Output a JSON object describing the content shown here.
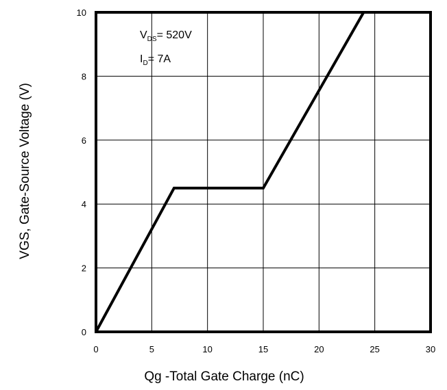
{
  "chart_data": {
    "type": "line",
    "title": "",
    "xlabel": "Qg -Total Gate Charge (nC)",
    "ylabel": "VGS, Gate-Source Voltage (V)",
    "xlim": [
      0,
      30
    ],
    "ylim": [
      0,
      10
    ],
    "x_ticks": [
      "0",
      "5",
      "10",
      "15",
      "20",
      "25",
      "30"
    ],
    "y_ticks": [
      "0",
      "2",
      "4",
      "6",
      "8",
      "10"
    ],
    "grid": true,
    "series": [
      {
        "x": [
          0,
          7,
          15,
          24
        ],
        "y": [
          0,
          4.5,
          4.5,
          10
        ]
      }
    ],
    "annotations": {
      "vds": {
        "main": "V",
        "sub": "DS",
        "rest": "= 520V"
      },
      "id": {
        "main": "I",
        "sub": "D",
        "rest": "= 7A"
      }
    },
    "colors": {
      "line": "#000000",
      "grid": "#000000",
      "frame": "#000000"
    }
  }
}
